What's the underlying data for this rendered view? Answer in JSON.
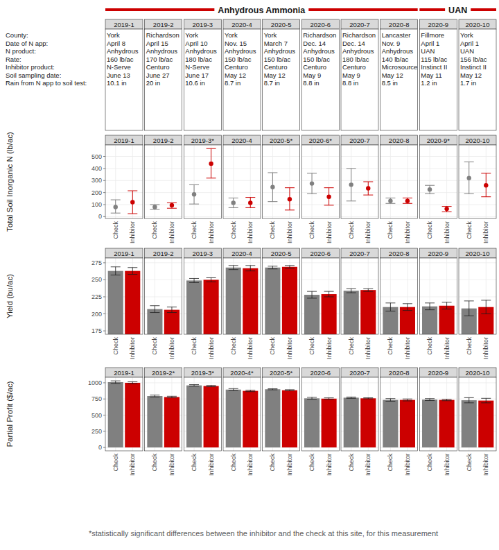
{
  "groups": [
    {
      "label": "Anhydrous Ammonia",
      "sites": [
        "2019-1",
        "2019-2",
        "2019-3",
        "2020-4",
        "2020-5",
        "2020-6",
        "2020-7",
        "2020-8"
      ]
    },
    {
      "label": "UAN",
      "sites": [
        "2020-9",
        "2020-10"
      ]
    }
  ],
  "info": {
    "row_labels": [
      "County:",
      "Date of N app:",
      "N product:",
      "Rate:",
      "Inhibitor product:",
      "Soil sampling date:",
      "Rain from N app to soil test:"
    ],
    "columns": [
      {
        "site": "2019-1",
        "values": [
          "York",
          "April 8",
          "Anhydrous",
          "160 lb/ac",
          "N-Serve",
          "June 13",
          "10.1 in"
        ]
      },
      {
        "site": "2019-2",
        "values": [
          "Richardson",
          "April 15",
          "Anhydrous",
          "170 lb/ac",
          "Centuro",
          "June 27",
          "20 in"
        ]
      },
      {
        "site": "2019-3",
        "values": [
          "York",
          "April 10",
          "Anhydrous",
          "180 lb/ac",
          "N-Serve",
          "June 17",
          "10.6 in"
        ]
      },
      {
        "site": "2020-4",
        "values": [
          "York",
          "Nov. 15",
          "Anhydrous",
          "150 lb/ac",
          "Centuro",
          "May 12",
          "8.7 in"
        ]
      },
      {
        "site": "2020-5",
        "values": [
          "York",
          "March 7",
          "Anhydrous",
          "150 lb/ac",
          "Centuro",
          "May 12",
          "8.7 in"
        ]
      },
      {
        "site": "2020-6",
        "values": [
          "Richardson",
          "Dec. 14",
          "Anhydrous",
          "150 lb/ac",
          "Centuro",
          "May 9",
          "8.8 in"
        ]
      },
      {
        "site": "2020-7",
        "values": [
          "Richardson",
          "Dec. 14",
          "Anhydrous",
          "180 lb/ac",
          "Centuro",
          "May 9",
          "8.8 in"
        ]
      },
      {
        "site": "2020-8",
        "values": [
          "Lancaster",
          "Nov. 9",
          "Anhydrous",
          "140 lb/ac",
          "Microsource",
          "May 12",
          "8.5 in"
        ]
      },
      {
        "site": "2020-9",
        "values": [
          "Fillmore",
          "April 1",
          "UAN",
          "115 lb/ac",
          "Instinct II",
          "May 11",
          "1.2 in"
        ]
      },
      {
        "site": "2020-10",
        "values": [
          "York",
          "April 1",
          "UAN",
          "156 lb/ac",
          "Instinct II",
          "May 12",
          "1.7 in"
        ]
      }
    ]
  },
  "chart_data": [
    {
      "type": "scatter",
      "ylabel": "Total Soil Inorganic N (lb/ac)",
      "categories": [
        "Check",
        "Inhibitor"
      ],
      "colors": [
        "#808080",
        "#cc0000"
      ],
      "grid": true,
      "ylim": [
        -15,
        595
      ],
      "yticks": [
        0,
        100,
        200,
        300,
        400,
        500
      ],
      "panels": [
        {
          "title": "2019-1",
          "values": [
            80,
            120
          ],
          "lower": [
            30,
            25
          ],
          "upper": [
            140,
            215
          ]
        },
        {
          "title": "2019-2",
          "values": [
            80,
            95
          ],
          "lower": [
            60,
            70
          ],
          "upper": [
            100,
            115
          ]
        },
        {
          "title": "2019-3*",
          "values": [
            185,
            440
          ],
          "lower": [
            105,
            320
          ],
          "upper": [
            265,
            565
          ]
        },
        {
          "title": "2020-4",
          "values": [
            115,
            115
          ],
          "lower": [
            75,
            75
          ],
          "upper": [
            155,
            160
          ]
        },
        {
          "title": "2020-5*",
          "values": [
            245,
            145
          ],
          "lower": [
            125,
            55
          ],
          "upper": [
            365,
            240
          ]
        },
        {
          "title": "2020-6*",
          "values": [
            275,
            165
          ],
          "lower": [
            190,
            95
          ],
          "upper": [
            360,
            240
          ]
        },
        {
          "title": "2020-7",
          "values": [
            265,
            235
          ],
          "lower": [
            130,
            180
          ],
          "upper": [
            400,
            290
          ]
        },
        {
          "title": "2020-8",
          "values": [
            130,
            130
          ],
          "lower": [
            110,
            110
          ],
          "upper": [
            155,
            155
          ]
        },
        {
          "title": "2020-9*",
          "values": [
            225,
            65
          ],
          "lower": [
            190,
            40
          ],
          "upper": [
            260,
            85
          ]
        },
        {
          "title": "2020-10",
          "values": [
            320,
            260
          ],
          "lower": [
            190,
            165
          ],
          "upper": [
            455,
            360
          ]
        }
      ]
    },
    {
      "type": "bar",
      "ylabel": "Yield (bu/ac)",
      "categories": [
        "Check",
        "Inhibitor"
      ],
      "colors": [
        "#808080",
        "#cc0000"
      ],
      "grid": true,
      "ylim": [
        170,
        282
      ],
      "yticks": [
        175,
        200,
        225,
        250,
        275
      ],
      "panels": [
        {
          "title": "2019-1",
          "values": [
            263,
            263
          ],
          "errors": [
            6,
            5
          ]
        },
        {
          "title": "2019-2",
          "values": [
            207,
            206
          ],
          "errors": [
            5,
            4
          ]
        },
        {
          "title": "2019-3",
          "values": [
            249,
            250
          ],
          "errors": [
            3,
            3
          ]
        },
        {
          "title": "2020-4",
          "values": [
            268,
            267
          ],
          "errors": [
            3,
            4
          ]
        },
        {
          "title": "2020-5",
          "values": [
            268,
            269
          ],
          "errors": [
            2,
            2
          ]
        },
        {
          "title": "2020-6",
          "values": [
            228,
            229
          ],
          "errors": [
            5,
            4
          ]
        },
        {
          "title": "2020-7",
          "values": [
            234,
            235
          ],
          "errors": [
            3,
            2
          ]
        },
        {
          "title": "2020-8",
          "values": [
            210,
            210
          ],
          "errors": [
            6,
            5
          ]
        },
        {
          "title": "2020-9",
          "values": [
            211,
            212
          ],
          "errors": [
            5,
            5
          ]
        },
        {
          "title": "2020-10",
          "values": [
            208,
            210
          ],
          "errors": [
            11,
            10
          ]
        }
      ]
    },
    {
      "type": "bar",
      "ylabel": "Partial Profit ($/ac)",
      "categories": [
        "Check",
        "Inhibitor"
      ],
      "colors": [
        "#808080",
        "#cc0000"
      ],
      "grid": true,
      "ylim": [
        -52,
        1085
      ],
      "yticks": [
        0,
        250,
        500,
        750,
        1000
      ],
      "panels": [
        {
          "title": "2019-1",
          "values": [
            1010,
            1000
          ],
          "errors": [
            20,
            15
          ]
        },
        {
          "title": "2019-2*",
          "values": [
            795,
            780
          ],
          "errors": [
            15,
            12
          ]
        },
        {
          "title": "2019-3*",
          "values": [
            960,
            950
          ],
          "errors": [
            12,
            10
          ]
        },
        {
          "title": "2020-4*",
          "values": [
            895,
            875
          ],
          "errors": [
            15,
            12
          ]
        },
        {
          "title": "2020-5*",
          "values": [
            900,
            885
          ],
          "errors": [
            8,
            8
          ]
        },
        {
          "title": "2020-6",
          "values": [
            760,
            755
          ],
          "errors": [
            15,
            12
          ]
        },
        {
          "title": "2020-7",
          "values": [
            770,
            760
          ],
          "errors": [
            10,
            8
          ]
        },
        {
          "title": "2020-8",
          "values": [
            735,
            735
          ],
          "errors": [
            20,
            15
          ]
        },
        {
          "title": "2020-9",
          "values": [
            740,
            735
          ],
          "errors": [
            15,
            12
          ]
        },
        {
          "title": "2020-10",
          "values": [
            730,
            725
          ],
          "errors": [
            40,
            35
          ]
        }
      ]
    }
  ],
  "footnote": "*statistically significant differences between the inhibitor and the check at this site, for this measurement"
}
